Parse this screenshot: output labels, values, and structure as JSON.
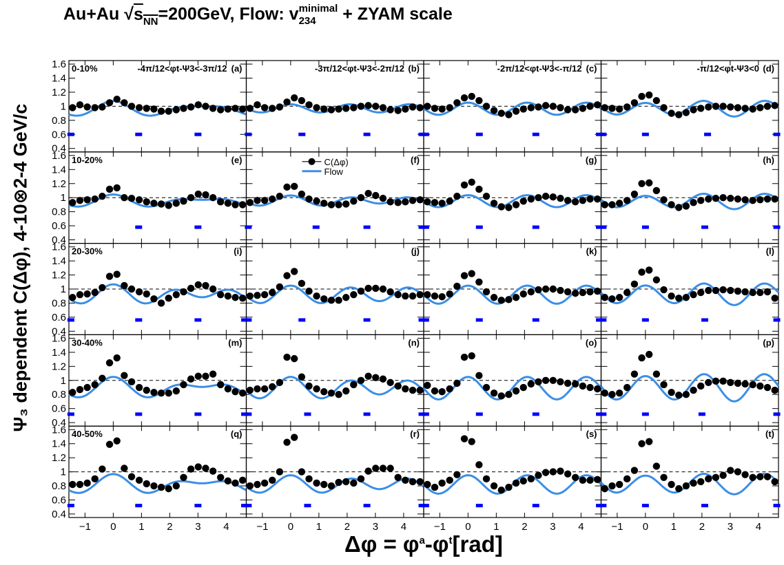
{
  "title": {
    "part1": "Au+Au ",
    "sqrt_sym": "√",
    "sqrt_body": "s",
    "sqrt_sub": "NN",
    "part2": "=200GeV, Flow: v",
    "v_sup": "minimal",
    "v_sub": "234",
    "part3": " + ZYAM scale"
  },
  "ylabel": "Ψ₃ dependent C(Δφ), 4-10⊗2-4 GeV/c",
  "xlabel": {
    "main": "Δφ = φ",
    "sup1": "a",
    "mid": "-φ",
    "sup2": "t",
    "unit": "[rad]"
  },
  "chart_data": {
    "type": "scatter",
    "xlim": [
      -1.57,
      4.71
    ],
    "ylim": [
      0.35,
      1.65
    ],
    "x_ticks": [
      "−1",
      "0",
      "1",
      "2",
      "3",
      "4"
    ],
    "y_ticks": [
      "0.4",
      "0.6",
      "0.8",
      "1",
      "1.2",
      "1.4",
      "1.6"
    ],
    "reference_line": 1.0,
    "colors": {
      "points": "#000000",
      "flow": "#3b8ee6",
      "zyam": "#0000ff",
      "ref": "#000000"
    },
    "legend": {
      "points": "C(Δφ)",
      "flow": "Flow",
      "panel": "f"
    },
    "columns": [
      "-4π/12<φt-Ψ3<-3π/12",
      "-3π/12<φt-Ψ3<-2π/12",
      "-2π/12<φt-Ψ3<-π/12",
      "-π/12<φt-Ψ3<0"
    ],
    "centrality": [
      "0-10%",
      "10-20%",
      "20-30%",
      "30-40%",
      "40-50%"
    ],
    "x": [
      -1.44,
      -1.18,
      -0.92,
      -0.65,
      -0.39,
      -0.13,
      0.13,
      0.39,
      0.65,
      0.92,
      1.18,
      1.44,
      1.7,
      1.96,
      2.23,
      2.49,
      2.75,
      3.01,
      3.27,
      3.53,
      3.8,
      4.06,
      4.32,
      4.58
    ],
    "panels": [
      {
        "label": "(a)",
        "zyam": 0.6,
        "zyam_x": [
          -1.5,
          0.9,
          3.0
        ],
        "flow": [
          0.96,
          0.04,
          0.02,
          0
        ],
        "values": [
          0.98,
          1.02,
          0.99,
          0.98,
          0.99,
          1.05,
          1.1,
          1.05,
          1.0,
          0.98,
          0.97,
          0.96,
          0.93,
          0.93,
          0.95,
          0.97,
          0.99,
          1.02,
          1.0,
          0.97,
          0.95,
          0.96,
          0.97,
          0.96
        ]
      },
      {
        "label": "(b)",
        "zyam": 0.6,
        "zyam_x": [
          -1.5,
          0.4,
          2.7,
          4.65
        ],
        "flow": [
          0.97,
          0.0,
          0.03,
          0
        ],
        "values": [
          0.97,
          1.02,
          0.98,
          0.97,
          0.99,
          1.06,
          1.12,
          1.08,
          1.02,
          0.98,
          0.96,
          0.95,
          0.96,
          0.97,
          0.98,
          1.0,
          1.01,
          1.0,
          0.98,
          0.95,
          0.94,
          0.96,
          0.99,
          0.98
        ]
      },
      {
        "label": "(c)",
        "zyam": 0.6,
        "zyam_x": [
          -1.5,
          0.4,
          2.4,
          4.65
        ],
        "flow": [
          0.965,
          0.0,
          0.045,
          0
        ],
        "values": [
          1.0,
          0.97,
          0.96,
          0.98,
          1.05,
          1.12,
          1.14,
          1.08,
          1.0,
          0.94,
          0.9,
          0.88,
          0.93,
          0.96,
          0.98,
          0.99,
          1.01,
          1.0,
          0.98,
          0.95,
          0.95,
          0.97,
          1.0,
          1.02
        ]
      },
      {
        "label": "(d)",
        "zyam": 0.6,
        "zyam_x": [
          -1.5,
          0.0,
          2.2,
          4.65
        ],
        "flow": [
          0.97,
          -0.01,
          0.05,
          0
        ],
        "values": [
          0.98,
          0.97,
          0.96,
          0.99,
          1.05,
          1.14,
          1.16,
          1.08,
          0.98,
          0.9,
          0.88,
          0.91,
          0.95,
          0.97,
          0.99,
          1.0,
          1.0,
          0.99,
          0.98,
          0.97,
          0.96,
          0.98,
          1.0,
          1.01
        ]
      },
      {
        "label": "(e)",
        "zyam": 0.58,
        "zyam_x": [
          0.9,
          3.0
        ],
        "flow": [
          0.95,
          0.03,
          0.02,
          0
        ],
        "values": [
          0.93,
          0.96,
          0.97,
          0.98,
          1.02,
          1.12,
          1.14,
          1.0,
          0.99,
          0.97,
          0.94,
          0.92,
          0.91,
          0.89,
          0.92,
          0.95,
          1.0,
          1.05,
          1.04,
          1.0,
          0.94,
          0.92,
          0.9,
          0.9
        ]
      },
      {
        "label": "(f)",
        "zyam": 0.58,
        "zyam_x": [
          -1.5,
          0.9,
          2.7,
          4.65
        ],
        "flow": [
          0.955,
          0.01,
          0.03,
          0
        ],
        "values": [
          0.93,
          0.96,
          0.96,
          0.98,
          1.02,
          1.15,
          1.16,
          1.05,
          0.98,
          0.95,
          0.92,
          0.9,
          0.9,
          0.91,
          0.95,
          1.0,
          1.06,
          1.03,
          0.99,
          0.94,
          0.93,
          0.94,
          0.96,
          0.97
        ]
      },
      {
        "label": "(g)",
        "zyam": 0.58,
        "zyam_x": [
          -1.5,
          0.4,
          2.4,
          4.65
        ],
        "flow": [
          0.95,
          0.0,
          0.045,
          0
        ],
        "values": [
          0.94,
          0.93,
          0.92,
          0.95,
          1.02,
          1.18,
          1.22,
          1.12,
          1.02,
          0.92,
          0.87,
          0.86,
          0.9,
          0.95,
          0.98,
          1.0,
          1.02,
          1.01,
          0.99,
          0.96,
          0.94,
          0.96,
          0.98,
          0.98
        ]
      },
      {
        "label": "(h)",
        "zyam": 0.58,
        "zyam_x": [
          -1.5,
          0.0,
          2.1,
          4.65
        ],
        "flow": [
          0.95,
          -0.01,
          0.05,
          0
        ],
        "values": [
          0.9,
          0.9,
          0.92,
          0.96,
          1.05,
          1.2,
          1.21,
          1.1,
          0.97,
          0.9,
          0.86,
          0.88,
          0.93,
          0.96,
          0.98,
          0.99,
          1.0,
          0.99,
          0.98,
          0.97,
          0.96,
          0.97,
          0.98,
          0.98
        ]
      },
      {
        "label": "(i)",
        "zyam": 0.56,
        "zyam_x": [
          -1.5,
          0.9,
          3.0,
          4.65
        ],
        "flow": [
          0.92,
          0.03,
          0.05,
          0
        ],
        "values": [
          0.88,
          0.92,
          0.93,
          0.95,
          1.02,
          1.18,
          1.21,
          1.05,
          1.0,
          0.96,
          0.93,
          0.86,
          0.8,
          0.87,
          0.92,
          0.96,
          1.01,
          1.06,
          1.05,
          1.0,
          0.92,
          0.9,
          0.88,
          0.87
        ]
      },
      {
        "label": "(j)",
        "zyam": 0.56,
        "zyam_x": [
          -1.5,
          0.4,
          2.7,
          4.65
        ],
        "flow": [
          0.92,
          0.01,
          0.06,
          0
        ],
        "values": [
          0.9,
          0.91,
          0.92,
          0.95,
          1.03,
          1.19,
          1.25,
          1.08,
          0.97,
          0.9,
          0.86,
          0.84,
          0.84,
          0.88,
          0.92,
          0.97,
          1.01,
          1.01,
          1.0,
          0.96,
          0.92,
          0.9,
          0.9,
          0.92
        ]
      },
      {
        "label": "(k)",
        "zyam": 0.56,
        "zyam_x": [
          -1.5,
          0.4,
          2.4,
          4.65
        ],
        "flow": [
          0.92,
          0.0,
          0.07,
          0
        ],
        "values": [
          0.92,
          0.9,
          0.89,
          0.93,
          1.04,
          1.19,
          1.22,
          1.1,
          0.96,
          0.88,
          0.84,
          0.85,
          0.88,
          0.93,
          0.96,
          0.99,
          1.0,
          1.0,
          0.98,
          0.96,
          0.94,
          0.95,
          0.96,
          0.97
        ]
      },
      {
        "label": "(l)",
        "zyam": 0.56,
        "zyam_x": [
          -1.5,
          0.0,
          2.1,
          4.65
        ],
        "flow": [
          0.93,
          -0.01,
          0.075,
          0
        ],
        "values": [
          0.88,
          0.86,
          0.88,
          0.95,
          1.07,
          1.24,
          1.27,
          1.13,
          0.99,
          0.9,
          0.87,
          0.88,
          0.92,
          0.95,
          0.98,
          0.98,
          0.99,
          0.98,
          0.97,
          0.96,
          0.95,
          0.95,
          0.96,
          0.87
        ]
      },
      {
        "label": "(m)",
        "zyam": 0.52,
        "zyam_x": [
          -1.5,
          0.9,
          3.0,
          4.65
        ],
        "flow": [
          0.89,
          0.05,
          0.04,
          0
        ],
        "values": [
          0.83,
          0.87,
          0.9,
          0.94,
          1.03,
          1.25,
          1.32,
          1.07,
          0.98,
          0.9,
          0.86,
          0.83,
          0.82,
          0.82,
          0.85,
          0.94,
          1.02,
          1.06,
          1.06,
          1.09,
          0.94,
          0.88,
          0.84,
          0.82
        ]
      },
      {
        "label": "(n)",
        "zyam": 0.52,
        "zyam_x": [
          -1.5,
          0.6,
          2.7,
          4.65
        ],
        "flow": [
          0.89,
          0.02,
          0.07,
          0
        ],
        "values": [
          0.86,
          0.88,
          0.88,
          0.91,
          0.97,
          1.33,
          1.31,
          1.05,
          0.92,
          0.88,
          0.84,
          0.82,
          0.8,
          0.85,
          0.94,
          1.0,
          1.06,
          1.04,
          1.02,
          0.97,
          0.92,
          0.88,
          0.86,
          0.86
        ]
      },
      {
        "label": "(o)",
        "zyam": 0.52,
        "zyam_x": [
          -1.5,
          0.4,
          2.4,
          4.65
        ],
        "flow": [
          0.89,
          0.0,
          0.09,
          0
        ],
        "values": [
          0.93,
          0.85,
          0.84,
          0.88,
          0.96,
          1.33,
          1.35,
          1.07,
          0.9,
          0.82,
          0.78,
          0.8,
          0.85,
          0.9,
          0.95,
          0.98,
          1.0,
          1.0,
          0.98,
          0.96,
          0.95,
          0.92,
          0.9,
          0.88
        ]
      },
      {
        "label": "(p)",
        "zyam": 0.52,
        "zyam_x": [
          -1.5,
          0.0,
          2.0,
          4.65
        ],
        "flow": [
          0.9,
          -0.01,
          0.1,
          0
        ],
        "values": [
          0.82,
          0.8,
          0.82,
          0.9,
          1.09,
          1.32,
          1.37,
          1.09,
          0.94,
          0.83,
          0.79,
          0.8,
          0.86,
          0.92,
          0.97,
          0.99,
          0.99,
          0.97,
          0.96,
          0.95,
          0.94,
          0.92,
          0.9,
          0.86
        ]
      },
      {
        "label": "(q)",
        "zyam": 0.52,
        "zyam_x": [
          -1.5,
          0.9,
          3.0,
          4.65
        ],
        "flow": [
          0.82,
          0.05,
          0.04,
          0
        ],
        "values": [
          0.82,
          0.82,
          0.84,
          0.9,
          1.04,
          1.39,
          1.44,
          1.05,
          0.93,
          0.88,
          0.83,
          0.8,
          0.78,
          0.76,
          0.8,
          0.92,
          1.04,
          1.07,
          1.05,
          1.01,
          0.92,
          0.87,
          0.84,
          0.88
        ]
      },
      {
        "label": "(r)",
        "zyam": 0.52,
        "zyam_x": [
          -1.5,
          0.6,
          2.7,
          4.65
        ],
        "flow": [
          0.82,
          0.02,
          0.06,
          0
        ],
        "values": [
          0.8,
          0.82,
          0.84,
          0.88,
          1.0,
          1.42,
          1.49,
          1.0,
          0.9,
          0.84,
          0.82,
          0.8,
          0.85,
          0.86,
          0.84,
          0.9,
          1.01,
          1.05,
          1.05,
          1.05,
          0.92,
          0.88,
          0.86,
          0.86
        ]
      },
      {
        "label": "(s)",
        "zyam": 0.52,
        "zyam_x": [
          -1.5,
          0.4,
          2.4,
          4.65
        ],
        "flow": [
          0.82,
          0.0,
          0.08,
          0
        ],
        "values": [
          0.82,
          0.78,
          0.84,
          0.88,
          0.96,
          1.47,
          1.43,
          1.1,
          0.9,
          0.8,
          0.74,
          0.78,
          0.84,
          0.87,
          0.9,
          0.95,
          0.99,
          1.0,
          1.01,
          0.97,
          0.92,
          0.88,
          0.88,
          0.89
        ]
      },
      {
        "label": "(t)",
        "zyam": 0.52,
        "zyam_x": [
          -1.5,
          0.0,
          2.1,
          4.65
        ],
        "flow": [
          0.83,
          -0.01,
          0.08,
          0
        ],
        "values": [
          0.76,
          0.8,
          0.82,
          0.9,
          1.02,
          1.4,
          1.43,
          1.08,
          0.92,
          0.82,
          0.76,
          0.8,
          0.84,
          0.86,
          0.9,
          0.92,
          0.95,
          1.02,
          1.0,
          0.96,
          0.92,
          0.93,
          0.93,
          0.86
        ]
      }
    ]
  }
}
